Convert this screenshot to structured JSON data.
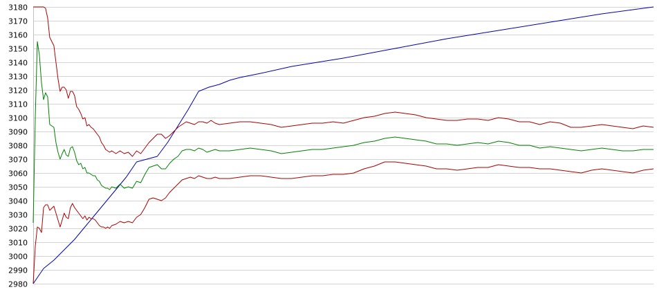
{
  "chart_data": {
    "type": "line",
    "title": "",
    "xlabel": "",
    "ylabel": "",
    "ylim": [
      2980,
      3180
    ],
    "xlim": [
      0,
      300
    ],
    "yticks": [
      2980,
      2990,
      3000,
      3010,
      3020,
      3030,
      3040,
      3050,
      3060,
      3070,
      3080,
      3090,
      3100,
      3110,
      3120,
      3130,
      3140,
      3150,
      3160,
      3170,
      3180
    ],
    "grid": true,
    "legend": "none",
    "series": [
      {
        "color": "#0000aa",
        "x": [
          0,
          5,
          10,
          20,
          30,
          40,
          45,
          50,
          55,
          60,
          65,
          70,
          75,
          80,
          85,
          90,
          95,
          100,
          110,
          125,
          150,
          175,
          200,
          225,
          250,
          275,
          300
        ],
        "y": [
          2980,
          2991,
          2997,
          3012,
          3030,
          3048,
          3057,
          3068,
          3070,
          3072,
          3082,
          3094,
          3106,
          3119,
          3122,
          3124,
          3127,
          3129,
          3132,
          3137,
          3143,
          3150,
          3157,
          3163,
          3169,
          3175,
          3180
        ]
      },
      {
        "color": "#aa0000",
        "x": [
          0,
          1,
          2,
          3,
          4,
          5,
          6,
          7,
          8,
          10,
          11,
          12,
          13,
          14,
          15,
          16,
          17,
          18,
          19,
          20,
          21,
          22,
          23,
          24,
          25,
          26,
          27,
          28,
          29,
          30,
          31,
          32,
          33,
          34,
          35,
          36,
          37,
          38,
          40,
          42,
          44,
          46,
          48,
          50,
          52,
          54,
          56,
          58,
          60,
          62,
          64,
          66,
          68,
          70,
          72,
          74,
          76,
          78,
          80,
          82,
          84,
          86,
          88,
          90,
          95,
          100,
          105,
          110,
          115,
          120,
          125,
          130,
          135,
          140,
          145,
          150,
          155,
          160,
          165,
          170,
          175,
          180,
          185,
          190,
          195,
          200,
          205,
          210,
          215,
          220,
          225,
          230,
          235,
          240,
          245,
          250,
          255,
          260,
          265,
          270,
          275,
          280,
          285,
          290,
          295,
          300
        ],
        "y": [
          3180,
          3180,
          3180,
          3180,
          3180,
          3180,
          3179,
          3172,
          3158,
          3152,
          3140,
          3128,
          3119,
          3122,
          3122,
          3120,
          3114,
          3119,
          3119,
          3116,
          3108,
          3106,
          3103,
          3099,
          3100,
          3094,
          3095,
          3093,
          3092,
          3090,
          3088,
          3086,
          3082,
          3080,
          3077,
          3076,
          3075,
          3076,
          3074,
          3076,
          3074,
          3075,
          3072,
          3076,
          3074,
          3078,
          3082,
          3085,
          3088,
          3088,
          3085,
          3087,
          3090,
          3093,
          3095,
          3097,
          3096,
          3095,
          3097,
          3097,
          3096,
          3098,
          3096,
          3095,
          3096,
          3097,
          3097,
          3096,
          3095,
          3093,
          3094,
          3095,
          3096,
          3096,
          3097,
          3096,
          3098,
          3100,
          3101,
          3103,
          3104,
          3103,
          3102,
          3100,
          3099,
          3098,
          3098,
          3099,
          3099,
          3098,
          3100,
          3099,
          3097,
          3097,
          3095,
          3097,
          3096,
          3093,
          3093,
          3094,
          3095,
          3094,
          3093,
          3092,
          3094,
          3093
        ]
      },
      {
        "color": "#008000",
        "x": [
          0,
          1,
          2,
          3,
          4,
          5,
          6,
          7,
          8,
          10,
          11,
          12,
          13,
          14,
          15,
          16,
          17,
          18,
          19,
          20,
          21,
          22,
          23,
          24,
          25,
          26,
          27,
          28,
          29,
          30,
          31,
          32,
          33,
          34,
          35,
          36,
          37,
          38,
          40,
          42,
          44,
          46,
          48,
          50,
          52,
          54,
          56,
          58,
          60,
          62,
          64,
          66,
          68,
          70,
          72,
          74,
          76,
          78,
          80,
          82,
          84,
          86,
          88,
          90,
          95,
          100,
          105,
          110,
          115,
          120,
          125,
          130,
          135,
          140,
          145,
          150,
          155,
          160,
          165,
          170,
          175,
          180,
          185,
          190,
          195,
          200,
          205,
          210,
          215,
          220,
          225,
          230,
          235,
          240,
          245,
          250,
          255,
          260,
          265,
          270,
          275,
          280,
          285,
          290,
          295,
          300
        ],
        "y": [
          3024,
          3100,
          3155,
          3145,
          3125,
          3113,
          3118,
          3115,
          3095,
          3093,
          3082,
          3075,
          3070,
          3074,
          3077,
          3073,
          3072,
          3078,
          3079,
          3075,
          3069,
          3066,
          3067,
          3063,
          3064,
          3060,
          3060,
          3059,
          3058,
          3058,
          3055,
          3054,
          3051,
          3050,
          3049,
          3049,
          3048,
          3050,
          3049,
          3052,
          3049,
          3050,
          3049,
          3054,
          3053,
          3059,
          3064,
          3065,
          3066,
          3063,
          3063,
          3067,
          3070,
          3072,
          3076,
          3077,
          3077,
          3076,
          3078,
          3077,
          3075,
          3076,
          3077,
          3076,
          3076,
          3077,
          3078,
          3077,
          3076,
          3074,
          3075,
          3076,
          3077,
          3077,
          3078,
          3079,
          3080,
          3082,
          3083,
          3085,
          3086,
          3085,
          3084,
          3083,
          3081,
          3081,
          3080,
          3081,
          3082,
          3081,
          3083,
          3082,
          3080,
          3080,
          3078,
          3079,
          3078,
          3077,
          3076,
          3077,
          3078,
          3077,
          3076,
          3076,
          3077,
          3077
        ]
      },
      {
        "color": "#aa0000",
        "x": [
          0,
          1,
          2,
          3,
          4,
          5,
          6,
          7,
          8,
          10,
          11,
          12,
          13,
          14,
          15,
          16,
          17,
          18,
          19,
          20,
          21,
          22,
          23,
          24,
          25,
          26,
          27,
          28,
          29,
          30,
          31,
          32,
          33,
          34,
          35,
          36,
          37,
          38,
          40,
          42,
          44,
          46,
          48,
          50,
          52,
          54,
          56,
          58,
          60,
          62,
          64,
          66,
          68,
          70,
          72,
          74,
          76,
          78,
          80,
          82,
          84,
          86,
          88,
          90,
          95,
          100,
          105,
          110,
          115,
          120,
          125,
          130,
          135,
          140,
          145,
          150,
          155,
          160,
          165,
          170,
          175,
          180,
          185,
          190,
          195,
          200,
          205,
          210,
          215,
          220,
          225,
          230,
          235,
          240,
          245,
          250,
          255,
          260,
          265,
          270,
          275,
          280,
          285,
          290,
          295,
          300
        ],
        "y": [
          2980,
          3007,
          3021,
          3020,
          3017,
          3035,
          3037,
          3037,
          3033,
          3036,
          3031,
          3026,
          3021,
          3026,
          3031,
          3028,
          3027,
          3035,
          3038,
          3035,
          3033,
          3031,
          3029,
          3027,
          3029,
          3026,
          3028,
          3027,
          3027,
          3026,
          3024,
          3022,
          3021,
          3021,
          3020,
          3021,
          3020,
          3022,
          3023,
          3025,
          3024,
          3025,
          3024,
          3028,
          3030,
          3035,
          3041,
          3042,
          3041,
          3040,
          3042,
          3046,
          3049,
          3052,
          3055,
          3056,
          3057,
          3056,
          3058,
          3057,
          3056,
          3056,
          3057,
          3056,
          3056,
          3057,
          3058,
          3058,
          3057,
          3056,
          3056,
          3057,
          3058,
          3058,
          3059,
          3059,
          3060,
          3063,
          3065,
          3068,
          3068,
          3067,
          3066,
          3065,
          3063,
          3063,
          3062,
          3063,
          3064,
          3064,
          3066,
          3065,
          3064,
          3064,
          3063,
          3063,
          3062,
          3061,
          3060,
          3062,
          3063,
          3062,
          3061,
          3060,
          3062,
          3063
        ]
      }
    ]
  }
}
